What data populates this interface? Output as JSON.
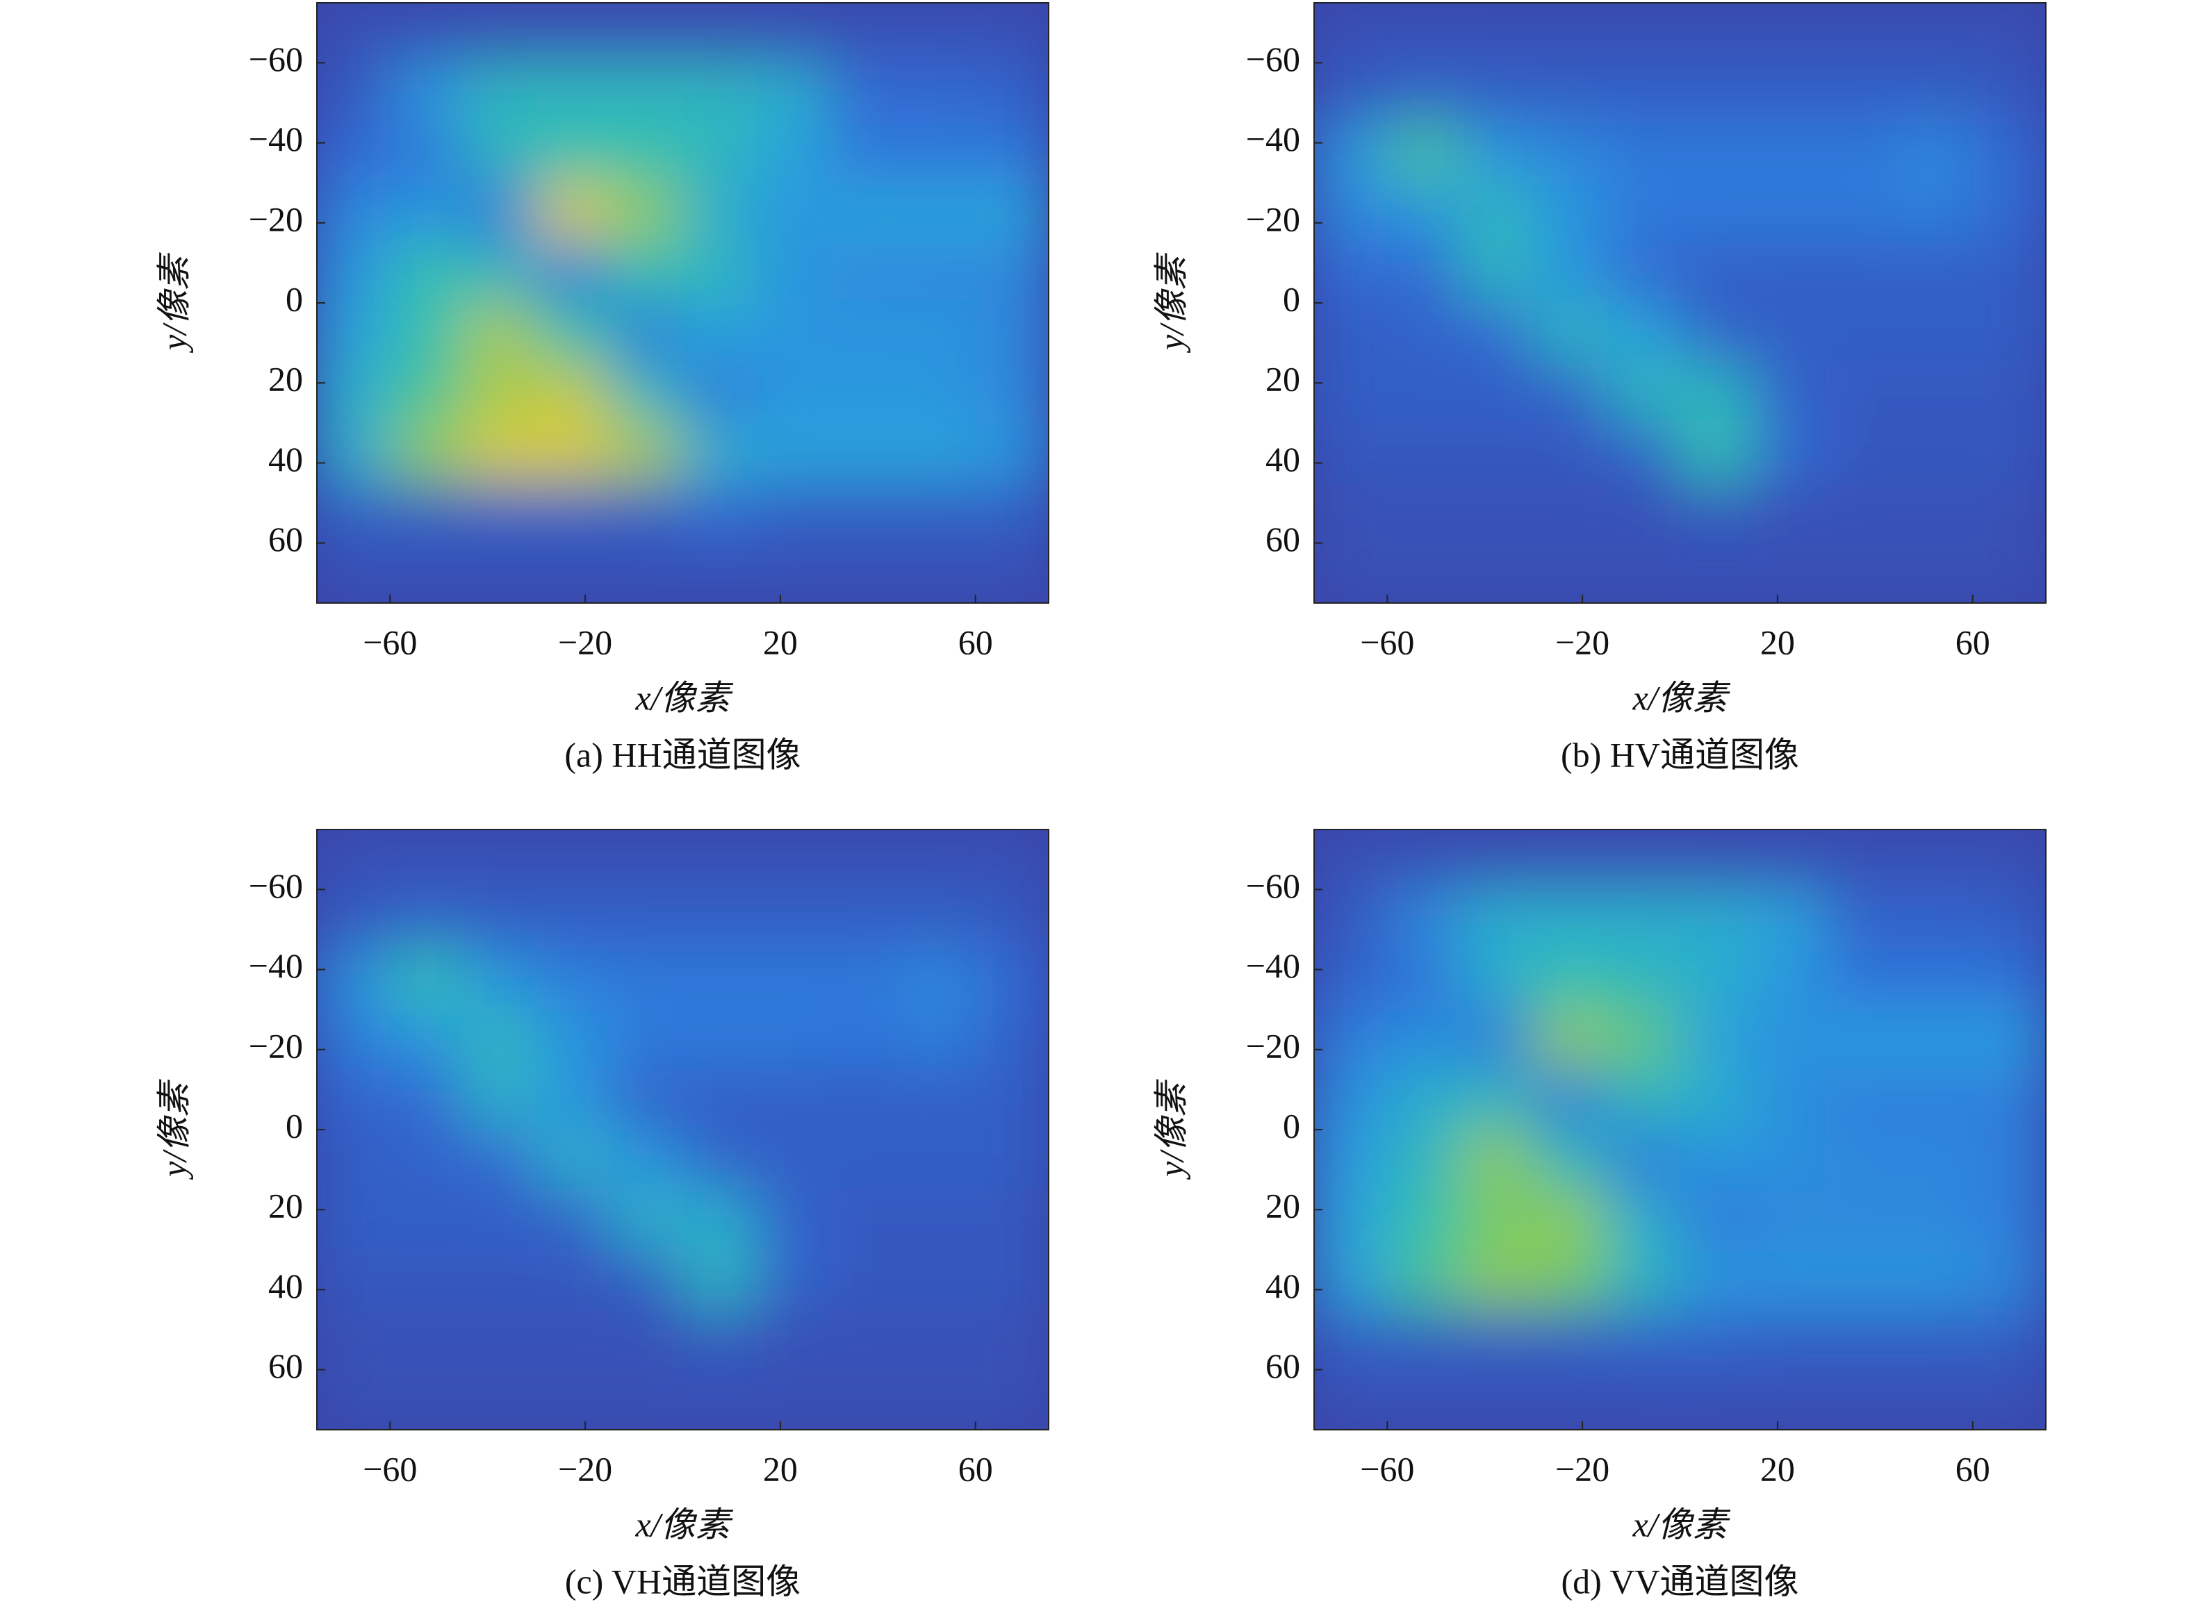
{
  "chart_data": [
    {
      "type": "heatmap",
      "caption": "(a) HH通道图像",
      "xlabel": "x/像素",
      "ylabel": "y/像素",
      "xlim": [
        -75,
        75
      ],
      "ylim": [
        -75,
        75
      ],
      "xticks": [
        {
          "value": -60,
          "label": "−60"
        },
        {
          "value": -20,
          "label": "−20"
        },
        20,
        60
      ],
      "yticks": [
        {
          "value": -60,
          "label": "−60"
        },
        {
          "value": -40,
          "label": "−40"
        },
        {
          "value": -20,
          "label": "−20"
        },
        0,
        20,
        40,
        60
      ],
      "x": [
        -67.5,
        -52.5,
        -37.5,
        -22.5,
        -7.5,
        7.5,
        22.5,
        37.5,
        52.5,
        67.5
      ],
      "y": [
        -67.5,
        -52.5,
        -37.5,
        -22.5,
        -7.5,
        7.5,
        22.5,
        37.5,
        52.5,
        67.5
      ],
      "colormap": [
        "#3a44a8",
        "#2f6fd8",
        "#2aa0e0",
        "#30c0b0",
        "#7ccb5e",
        "#d6c93a",
        "#f5e436"
      ],
      "values": [
        [
          0.05,
          0.05,
          0.05,
          0.05,
          0.05,
          0.05,
          0.05,
          0.05,
          0.05,
          0.05
        ],
        [
          0.08,
          0.3,
          0.45,
          0.45,
          0.45,
          0.45,
          0.4,
          0.15,
          0.15,
          0.12
        ],
        [
          0.15,
          0.2,
          0.45,
          0.5,
          0.5,
          0.45,
          0.35,
          0.2,
          0.2,
          0.2
        ],
        [
          0.25,
          0.3,
          0.2,
          0.85,
          0.7,
          0.4,
          0.3,
          0.35,
          0.35,
          0.35
        ],
        [
          0.3,
          0.5,
          0.45,
          0.2,
          0.5,
          0.45,
          0.3,
          0.25,
          0.25,
          0.25
        ],
        [
          0.35,
          0.5,
          0.75,
          0.5,
          0.2,
          0.35,
          0.3,
          0.3,
          0.3,
          0.25
        ],
        [
          0.4,
          0.55,
          0.75,
          0.8,
          0.45,
          0.2,
          0.3,
          0.3,
          0.3,
          0.25
        ],
        [
          0.4,
          0.7,
          0.85,
          0.85,
          0.75,
          0.4,
          0.35,
          0.35,
          0.35,
          0.3
        ],
        [
          0.1,
          0.1,
          0.1,
          0.1,
          0.1,
          0.15,
          0.1,
          0.1,
          0.1,
          0.1
        ],
        [
          0.05,
          0.05,
          0.05,
          0.05,
          0.05,
          0.05,
          0.05,
          0.05,
          0.05,
          0.05
        ]
      ]
    },
    {
      "type": "heatmap",
      "caption": "(b) HV通道图像",
      "xlabel": "x/像素",
      "ylabel": "y/像素",
      "xlim": [
        -75,
        75
      ],
      "ylim": [
        -75,
        75
      ],
      "xticks": [
        {
          "value": -60,
          "label": "−60"
        },
        {
          "value": -20,
          "label": "−20"
        },
        20,
        60
      ],
      "yticks": [
        {
          "value": -60,
          "label": "−60"
        },
        {
          "value": -40,
          "label": "−40"
        },
        {
          "value": -20,
          "label": "−20"
        },
        0,
        20,
        40,
        60
      ],
      "x": [
        -67.5,
        -52.5,
        -37.5,
        -22.5,
        -7.5,
        7.5,
        22.5,
        37.5,
        52.5,
        67.5
      ],
      "y": [
        -67.5,
        -52.5,
        -37.5,
        -22.5,
        -7.5,
        7.5,
        22.5,
        37.5,
        52.5,
        67.5
      ],
      "colormap": [
        "#3a44a8",
        "#2f6fd8",
        "#2aa0e0",
        "#30c0b0",
        "#7ccb5e",
        "#d6c93a",
        "#f5e436"
      ],
      "values": [
        [
          0.05,
          0.05,
          0.05,
          0.05,
          0.05,
          0.05,
          0.05,
          0.05,
          0.05,
          0.05
        ],
        [
          0.08,
          0.12,
          0.1,
          0.1,
          0.1,
          0.1,
          0.1,
          0.1,
          0.1,
          0.08
        ],
        [
          0.3,
          0.55,
          0.3,
          0.25,
          0.2,
          0.2,
          0.2,
          0.2,
          0.25,
          0.15
        ],
        [
          0.25,
          0.3,
          0.45,
          0.3,
          0.2,
          0.2,
          0.2,
          0.2,
          0.22,
          0.15
        ],
        [
          0.15,
          0.15,
          0.45,
          0.3,
          0.15,
          0.1,
          0.1,
          0.1,
          0.1,
          0.1
        ],
        [
          0.1,
          0.12,
          0.15,
          0.45,
          0.35,
          0.12,
          0.1,
          0.1,
          0.1,
          0.1
        ],
        [
          0.1,
          0.1,
          0.1,
          0.12,
          0.45,
          0.45,
          0.12,
          0.08,
          0.08,
          0.08
        ],
        [
          0.08,
          0.08,
          0.08,
          0.08,
          0.12,
          0.5,
          0.15,
          0.08,
          0.08,
          0.08
        ],
        [
          0.05,
          0.05,
          0.05,
          0.05,
          0.05,
          0.08,
          0.05,
          0.05,
          0.05,
          0.05
        ],
        [
          0.05,
          0.05,
          0.05,
          0.05,
          0.05,
          0.05,
          0.05,
          0.05,
          0.05,
          0.05
        ]
      ]
    },
    {
      "type": "heatmap",
      "caption": "(c) VH通道图像",
      "xlabel": "x/像素",
      "ylabel": "y/像素",
      "xlim": [
        -75,
        75
      ],
      "ylim": [
        -75,
        75
      ],
      "xticks": [
        {
          "value": -60,
          "label": "−60"
        },
        {
          "value": -20,
          "label": "−20"
        },
        20,
        60
      ],
      "yticks": [
        {
          "value": -60,
          "label": "−60"
        },
        {
          "value": -40,
          "label": "−40"
        },
        {
          "value": -20,
          "label": "−20"
        },
        0,
        20,
        40,
        60
      ],
      "x": [
        -67.5,
        -52.5,
        -37.5,
        -22.5,
        -7.5,
        7.5,
        22.5,
        37.5,
        52.5,
        67.5
      ],
      "y": [
        -67.5,
        -52.5,
        -37.5,
        -22.5,
        -7.5,
        7.5,
        22.5,
        37.5,
        52.5,
        67.5
      ],
      "colormap": [
        "#3a44a8",
        "#2f6fd8",
        "#2aa0e0",
        "#30c0b0",
        "#7ccb5e",
        "#d6c93a",
        "#f5e436"
      ],
      "values": [
        [
          0.05,
          0.05,
          0.05,
          0.05,
          0.05,
          0.05,
          0.05,
          0.05,
          0.05,
          0.05
        ],
        [
          0.08,
          0.12,
          0.1,
          0.1,
          0.1,
          0.1,
          0.1,
          0.1,
          0.1,
          0.08
        ],
        [
          0.28,
          0.5,
          0.3,
          0.22,
          0.2,
          0.2,
          0.2,
          0.2,
          0.25,
          0.15
        ],
        [
          0.22,
          0.3,
          0.45,
          0.3,
          0.2,
          0.2,
          0.2,
          0.18,
          0.22,
          0.12
        ],
        [
          0.12,
          0.15,
          0.42,
          0.3,
          0.12,
          0.1,
          0.1,
          0.1,
          0.1,
          0.1
        ],
        [
          0.1,
          0.12,
          0.15,
          0.42,
          0.3,
          0.12,
          0.1,
          0.1,
          0.1,
          0.1
        ],
        [
          0.1,
          0.1,
          0.1,
          0.12,
          0.42,
          0.4,
          0.12,
          0.08,
          0.08,
          0.08
        ],
        [
          0.08,
          0.08,
          0.08,
          0.08,
          0.1,
          0.45,
          0.12,
          0.08,
          0.08,
          0.08
        ],
        [
          0.05,
          0.05,
          0.05,
          0.05,
          0.05,
          0.08,
          0.05,
          0.05,
          0.05,
          0.05
        ],
        [
          0.05,
          0.05,
          0.05,
          0.05,
          0.05,
          0.05,
          0.05,
          0.05,
          0.05,
          0.05
        ]
      ]
    },
    {
      "type": "heatmap",
      "caption": "(d) VV通道图像",
      "xlabel": "x/像素",
      "ylabel": "y/像素",
      "xlim": [
        -75,
        75
      ],
      "ylim": [
        -75,
        75
      ],
      "xticks": [
        {
          "value": -60,
          "label": "−60"
        },
        {
          "value": -20,
          "label": "−20"
        },
        20,
        60
      ],
      "yticks": [
        {
          "value": -60,
          "label": "−60"
        },
        {
          "value": -40,
          "label": "−40"
        },
        {
          "value": -20,
          "label": "−20"
        },
        0,
        20,
        40,
        60
      ],
      "x": [
        -67.5,
        -52.5,
        -37.5,
        -22.5,
        -7.5,
        7.5,
        22.5,
        37.5,
        52.5,
        67.5
      ],
      "y": [
        -67.5,
        -52.5,
        -37.5,
        -22.5,
        -7.5,
        7.5,
        22.5,
        37.5,
        52.5,
        67.5
      ],
      "colormap": [
        "#3a44a8",
        "#2f6fd8",
        "#2aa0e0",
        "#30c0b0",
        "#7ccb5e",
        "#d6c93a",
        "#f5e436"
      ],
      "values": [
        [
          0.05,
          0.05,
          0.05,
          0.05,
          0.05,
          0.05,
          0.05,
          0.05,
          0.05,
          0.05
        ],
        [
          0.08,
          0.25,
          0.4,
          0.4,
          0.4,
          0.4,
          0.35,
          0.12,
          0.12,
          0.1
        ],
        [
          0.12,
          0.18,
          0.4,
          0.5,
          0.45,
          0.4,
          0.3,
          0.18,
          0.18,
          0.18
        ],
        [
          0.22,
          0.28,
          0.2,
          0.7,
          0.6,
          0.35,
          0.28,
          0.32,
          0.32,
          0.32
        ],
        [
          0.28,
          0.4,
          0.45,
          0.2,
          0.45,
          0.4,
          0.28,
          0.22,
          0.22,
          0.22
        ],
        [
          0.32,
          0.45,
          0.7,
          0.45,
          0.2,
          0.3,
          0.28,
          0.25,
          0.25,
          0.22
        ],
        [
          0.35,
          0.5,
          0.65,
          0.7,
          0.4,
          0.2,
          0.25,
          0.25,
          0.25,
          0.22
        ],
        [
          0.35,
          0.55,
          0.7,
          0.65,
          0.45,
          0.3,
          0.3,
          0.3,
          0.3,
          0.25
        ],
        [
          0.1,
          0.1,
          0.1,
          0.1,
          0.12,
          0.12,
          0.1,
          0.1,
          0.1,
          0.1
        ],
        [
          0.05,
          0.05,
          0.05,
          0.05,
          0.05,
          0.05,
          0.05,
          0.05,
          0.05,
          0.05
        ]
      ]
    }
  ]
}
